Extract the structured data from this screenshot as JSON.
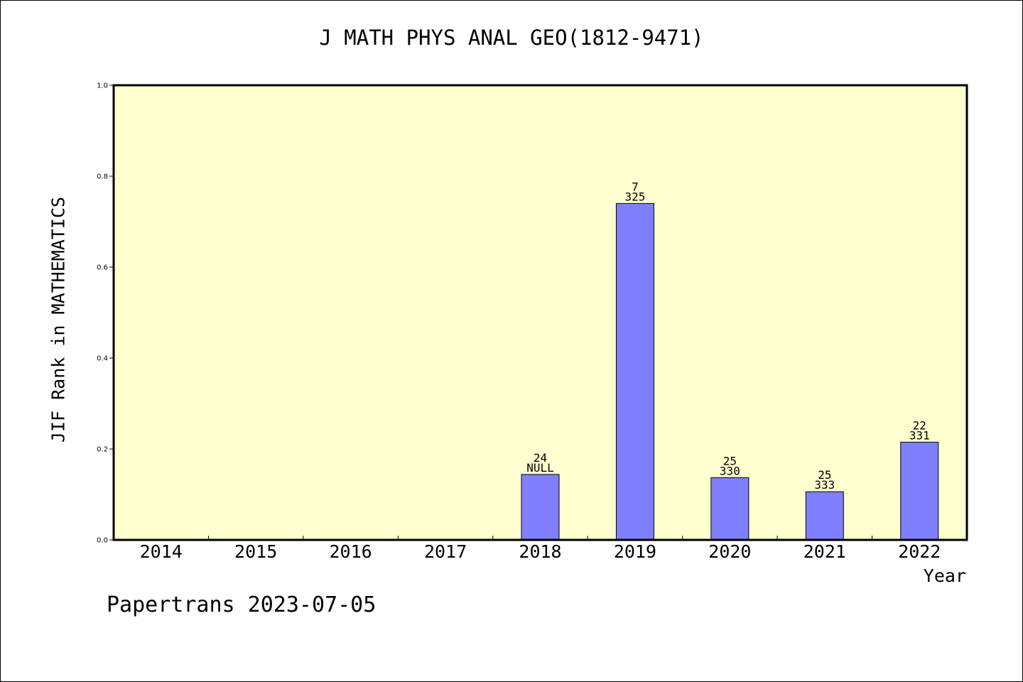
{
  "footer": "Papertrans 2023-07-05",
  "chart_data": {
    "type": "bar",
    "title": "J MATH PHYS ANAL GEO(1812-9471)",
    "xlabel": "Year",
    "ylabel": "JIF Rank in MATHEMATICS",
    "categories": [
      "2014",
      "2015",
      "2016",
      "2017",
      "2018",
      "2019",
      "2020",
      "2021",
      "2022"
    ],
    "values": [
      0,
      0,
      0,
      0,
      0.144,
      0.74,
      0.137,
      0.106,
      0.215
    ],
    "labels_top": [
      "",
      "",
      "",
      "",
      "24",
      "7",
      "25",
      "25",
      "22"
    ],
    "labels_bottom": [
      "",
      "",
      "",
      "",
      "NULL",
      "325",
      "330",
      "333",
      "331"
    ],
    "ylim": [
      0,
      1.0
    ],
    "yticks": [
      "0.0",
      "0.2",
      "0.4",
      "0.6",
      "0.8",
      "1.0"
    ],
    "grid": false,
    "colors": {
      "plot_background": "#ffffd0",
      "bar_fill": "#8080ff",
      "bar_stroke": "#000000",
      "axis": "#000000"
    }
  }
}
